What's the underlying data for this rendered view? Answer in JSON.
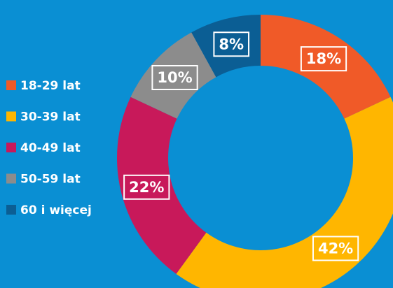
{
  "chart_data": {
    "type": "donut",
    "categories": [
      "18-29 lat",
      "30-39 lat",
      "40-49 lat",
      "50-59 lat",
      "60 i więcej"
    ],
    "values": [
      18,
      42,
      22,
      10,
      8
    ],
    "value_labels": [
      "18%",
      "42%",
      "22%",
      "10%",
      "8%"
    ],
    "colors": [
      "#f05a28",
      "#ffb600",
      "#c8195a",
      "#8c8c8c",
      "#0b5e94"
    ],
    "legend": "left"
  }
}
